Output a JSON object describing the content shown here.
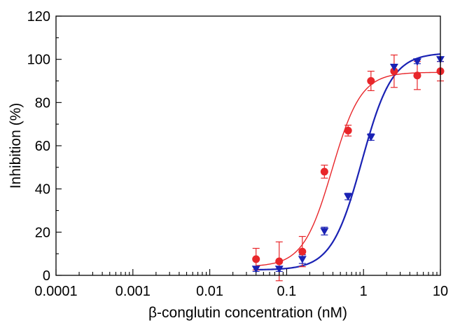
{
  "chart_data": {
    "type": "scatter",
    "xlabel": "β-conglutin concentration (nM)",
    "ylabel": "Inhibition (%)",
    "x_scale": "log",
    "xlim": [
      0.0001,
      10
    ],
    "ylim": [
      0,
      120
    ],
    "x_ticks": [
      {
        "value": 0.0001,
        "label": "0.0001"
      },
      {
        "value": 0.001,
        "label": "0.001"
      },
      {
        "value": 0.01,
        "label": "0.01"
      },
      {
        "value": 0.1,
        "label": "0.1"
      },
      {
        "value": 1,
        "label": "1"
      },
      {
        "value": 10,
        "label": "10"
      }
    ],
    "y_ticks": [
      {
        "value": 0,
        "label": "0"
      },
      {
        "value": 20,
        "label": "20"
      },
      {
        "value": 40,
        "label": "40"
      },
      {
        "value": 60,
        "label": "60"
      },
      {
        "value": 80,
        "label": "80"
      },
      {
        "value": 100,
        "label": "100"
      },
      {
        "value": 120,
        "label": "120"
      }
    ],
    "grid": false,
    "series": [
      {
        "marker": "circle",
        "color": "#e8262a",
        "x": [
          0.04,
          0.08,
          0.16,
          0.31,
          0.63,
          1.25,
          2.5,
          5,
          10
        ],
        "y": [
          7.5,
          6.5,
          11,
          48,
          67,
          90,
          94.5,
          92.5,
          94.5
        ],
        "error": [
          5,
          9,
          7,
          3,
          2.5,
          4.5,
          7.5,
          6.5,
          4.5
        ],
        "fit": {
          "bottom": 4,
          "top": 94,
          "ec50": 0.39,
          "hill": 2.3
        }
      },
      {
        "marker": "triangle-down",
        "color": "#1a22b4",
        "x": [
          0.04,
          0.08,
          0.16,
          0.31,
          0.63,
          1.25,
          2.5,
          5,
          10
        ],
        "y": [
          3,
          3,
          7.5,
          20.5,
          36.5,
          64,
          96.5,
          99,
          100
        ],
        "error": [
          1.2,
          1.2,
          2,
          1.8,
          1.5,
          1.5,
          1.2,
          1,
          1
        ],
        "fit": {
          "bottom": 2.5,
          "top": 103,
          "ec50": 0.95,
          "hill": 2.2
        }
      }
    ]
  }
}
